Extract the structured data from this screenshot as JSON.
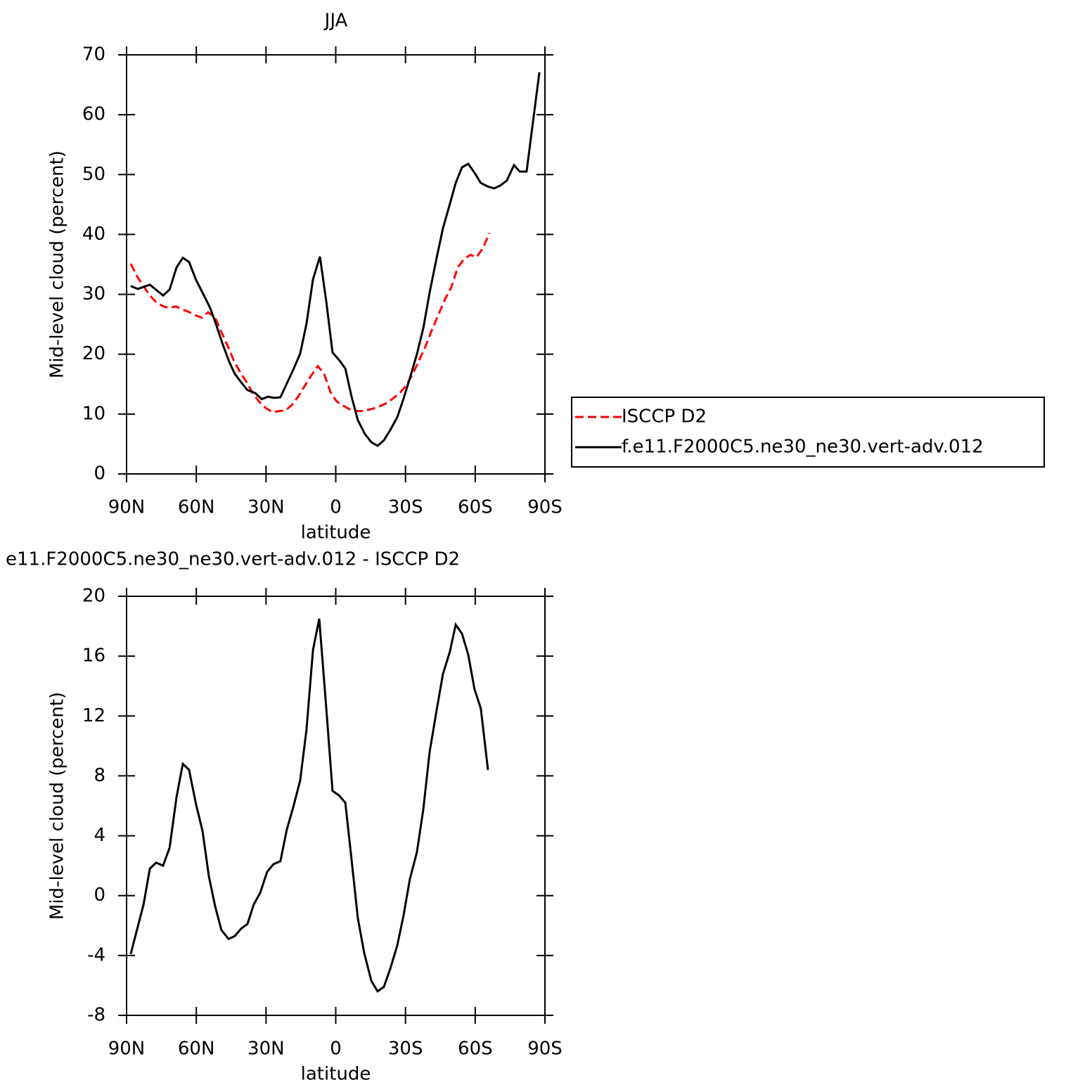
{
  "chart_data": [
    {
      "type": "line",
      "title": "JJA",
      "xlabel": "latitude",
      "ylabel": "Mid-level cloud (percent)",
      "xlim": [
        90,
        -90
      ],
      "xticks": [
        {
          "value": 90,
          "label": "90N"
        },
        {
          "value": 60,
          "label": "60N"
        },
        {
          "value": 30,
          "label": "30N"
        },
        0,
        {
          "value": -30,
          "label": "30S"
        },
        {
          "value": -60,
          "label": "60S"
        },
        {
          "value": -90,
          "label": "90S"
        }
      ],
      "ylim": [
        0,
        70
      ],
      "yticks": [
        0,
        10,
        20,
        30,
        40,
        50,
        60,
        70
      ],
      "legend": "right",
      "series": [
        {
          "name": "ISCCP D2",
          "color": "#ff0000",
          "style": "dashed",
          "x": [
            88.2,
            85.2,
            82.7,
            80.0,
            77.3,
            74.3,
            71.5,
            68.8,
            66.1,
            63.4,
            60.4,
            57.6,
            54.9,
            51.9,
            49.2,
            46.4,
            43.7,
            41.0,
            38.3,
            35.6,
            32.8,
            30.1,
            27.1,
            24.4,
            21.6,
            18.9,
            16.2,
            13.5,
            10.8,
            7.7,
            5.0,
            2.3,
            -0.4,
            -3.2,
            -5.9,
            -8.6,
            -11.3,
            -14.1,
            -16.8,
            -19.5,
            -22.2,
            -24.9,
            -27.7,
            -30.4,
            -33.1,
            -35.8,
            -38.6,
            -41.3,
            -44.3,
            -47.0,
            -49.7,
            -52.5,
            -55.2,
            -57.9,
            -60.6,
            -63.4,
            -66.1
          ],
          "values": [
            35.1,
            32.8,
            31.4,
            29.8,
            28.7,
            28.0,
            27.7,
            28.0,
            27.5,
            27.1,
            26.5,
            26.1,
            27.0,
            26.1,
            23.7,
            21.3,
            18.8,
            16.9,
            15.3,
            13.4,
            12.0,
            11.0,
            10.3,
            10.5,
            10.6,
            11.5,
            12.9,
            14.6,
            16.3,
            18.0,
            16.7,
            13.7,
            12.1,
            11.4,
            10.8,
            10.5,
            10.5,
            10.7,
            11.0,
            11.4,
            11.9,
            12.7,
            13.6,
            14.8,
            16.7,
            18.9,
            21.3,
            24.0,
            26.7,
            29.2,
            31.2,
            34.5,
            35.9,
            36.6,
            36.2,
            37.8,
            40.2
          ]
        },
        {
          "name": "f.e11.F2000C5.ne30_ne30.vert-adv.012",
          "color": "#000000",
          "style": "solid",
          "x": [
            88.2,
            85.2,
            80.0,
            74.3,
            71.5,
            68.5,
            65.8,
            63.1,
            60.1,
            56.7,
            54.0,
            51.6,
            48.6,
            45.8,
            43.4,
            40.7,
            38.0,
            34.6,
            31.9,
            29.2,
            26.5,
            23.8,
            18.3,
            15.3,
            12.6,
            9.8,
            6.8,
            4.1,
            1.4,
            -1.7,
            -4.1,
            -6.8,
            -9.5,
            -12.5,
            -15.3,
            -18.0,
            -20.7,
            -23.4,
            -26.5,
            -29.2,
            -31.9,
            -34.9,
            -37.7,
            -40.4,
            -43.4,
            -46.1,
            -49.1,
            -51.6,
            -54.3,
            -57.0,
            -59.7,
            -62.4,
            -65.5,
            -68.2,
            -70.9,
            -73.6,
            -76.7,
            -79.1,
            -82.1,
            -84.5,
            -87.6
          ],
          "values": [
            31.4,
            30.9,
            31.6,
            29.8,
            30.8,
            34.5,
            36.1,
            35.4,
            32.4,
            29.8,
            27.7,
            25.1,
            21.6,
            18.7,
            16.7,
            15.3,
            14.0,
            13.5,
            12.5,
            12.9,
            12.7,
            12.8,
            17.4,
            20.1,
            25.1,
            32.5,
            36.3,
            28.9,
            20.3,
            18.9,
            17.6,
            12.9,
            9.0,
            6.7,
            5.3,
            4.7,
            5.6,
            7.3,
            9.5,
            12.6,
            16.0,
            20.0,
            24.4,
            30.3,
            36.1,
            41.0,
            45.1,
            48.6,
            51.2,
            51.8,
            50.3,
            48.6,
            48.0,
            47.7,
            48.2,
            49.0,
            51.6,
            50.5,
            50.5,
            57.7,
            67.1
          ]
        }
      ]
    },
    {
      "type": "line",
      "title": "e11.F2000C5.ne30_ne30.vert-adv.012 - ISCCP D2",
      "xlabel": "latitude",
      "ylabel": "Mid-level cloud (percent)",
      "xlim": [
        90,
        -90
      ],
      "xticks": [
        {
          "value": 90,
          "label": "90N"
        },
        {
          "value": 60,
          "label": "60N"
        },
        {
          "value": 30,
          "label": "30N"
        },
        0,
        {
          "value": -30,
          "label": "30S"
        },
        {
          "value": -60,
          "label": "60S"
        },
        {
          "value": -90,
          "label": "90S"
        }
      ],
      "ylim": [
        -8,
        20
      ],
      "yticks": [
        -8,
        -4,
        0,
        4,
        8,
        12,
        16,
        20
      ],
      "series": [
        {
          "color": "#000000",
          "style": "solid",
          "x": [
            88.2,
            82.7,
            80.0,
            77.3,
            74.3,
            71.5,
            68.5,
            65.8,
            63.1,
            60.1,
            57.3,
            54.6,
            51.9,
            49.2,
            46.1,
            43.4,
            40.7,
            38.0,
            35.3,
            32.5,
            29.5,
            26.8,
            23.8,
            21.1,
            18.3,
            15.3,
            12.6,
            9.8,
            7.1,
            4.1,
            1.4,
            -1.4,
            -4.1,
            -6.8,
            -9.5,
            -12.2,
            -15.3,
            -18.0,
            -20.7,
            -23.4,
            -26.5,
            -29.2,
            -31.9,
            -34.9,
            -37.7,
            -40.4,
            -43.4,
            -46.1,
            -49.1,
            -51.6,
            -54.3,
            -57.0,
            -59.7,
            -62.4,
            -65.5
          ],
          "values": [
            -3.9,
            -0.6,
            1.8,
            2.2,
            2.0,
            3.2,
            6.6,
            8.8,
            8.4,
            6.1,
            4.3,
            1.3,
            -0.7,
            -2.3,
            -2.9,
            -2.7,
            -2.2,
            -1.9,
            -0.6,
            0.2,
            1.6,
            2.1,
            2.3,
            4.4,
            5.9,
            7.7,
            11.1,
            16.4,
            18.5,
            12.6,
            7.0,
            6.7,
            6.2,
            2.4,
            -1.5,
            -3.8,
            -5.7,
            -6.4,
            -6.1,
            -4.9,
            -3.3,
            -1.3,
            1.1,
            2.9,
            5.8,
            9.6,
            12.4,
            14.8,
            16.3,
            18.1,
            17.5,
            16.1,
            13.8,
            12.5,
            8.4
          ]
        }
      ]
    }
  ]
}
